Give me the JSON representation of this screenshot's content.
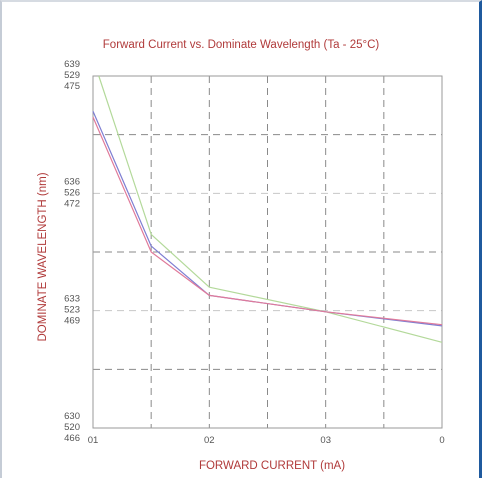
{
  "chart_data": {
    "type": "line",
    "title": "Forward Current vs. Dominate Wavelength (Ta - 25°C)",
    "xlabel": "FORWARD CURRENT (mA)",
    "ylabel": "DOMINATE WAVELENGTH (nm)",
    "x_tick_labels": [
      "01",
      "02",
      "03",
      "0"
    ],
    "y_tick_groups": [
      [
        "639",
        "529",
        "475"
      ],
      [
        "636",
        "526",
        "472"
      ],
      [
        "633",
        "523",
        "469"
      ],
      [
        "630",
        "520",
        "466"
      ]
    ],
    "xlim": [
      0,
      3
    ],
    "ylim": [
      0,
      3
    ],
    "grid": true,
    "legend": "none",
    "series": [
      {
        "color": "#b3d99a",
        "x": [
          0.05,
          0.5,
          1.0,
          2.0,
          3.0
        ],
        "y": [
          3.0,
          1.65,
          1.2,
          0.99,
          0.73
        ]
      },
      {
        "color": "#7e7ed2",
        "x": [
          0.0,
          0.5,
          1.0,
          2.0,
          3.0
        ],
        "y": [
          2.7,
          1.55,
          1.13,
          0.99,
          0.87
        ]
      },
      {
        "color": "#e07a9a",
        "x": [
          0.0,
          0.5,
          1.0,
          2.0,
          3.0
        ],
        "y": [
          2.65,
          1.5,
          1.13,
          0.99,
          0.88
        ]
      }
    ]
  },
  "colors": {
    "title": "#b03a3a",
    "axis_title": "#b03a3a",
    "grid_dashed": "#8a8a8a",
    "grid_light": "#c8c8c8",
    "plot_border": "#9a9a9a"
  }
}
